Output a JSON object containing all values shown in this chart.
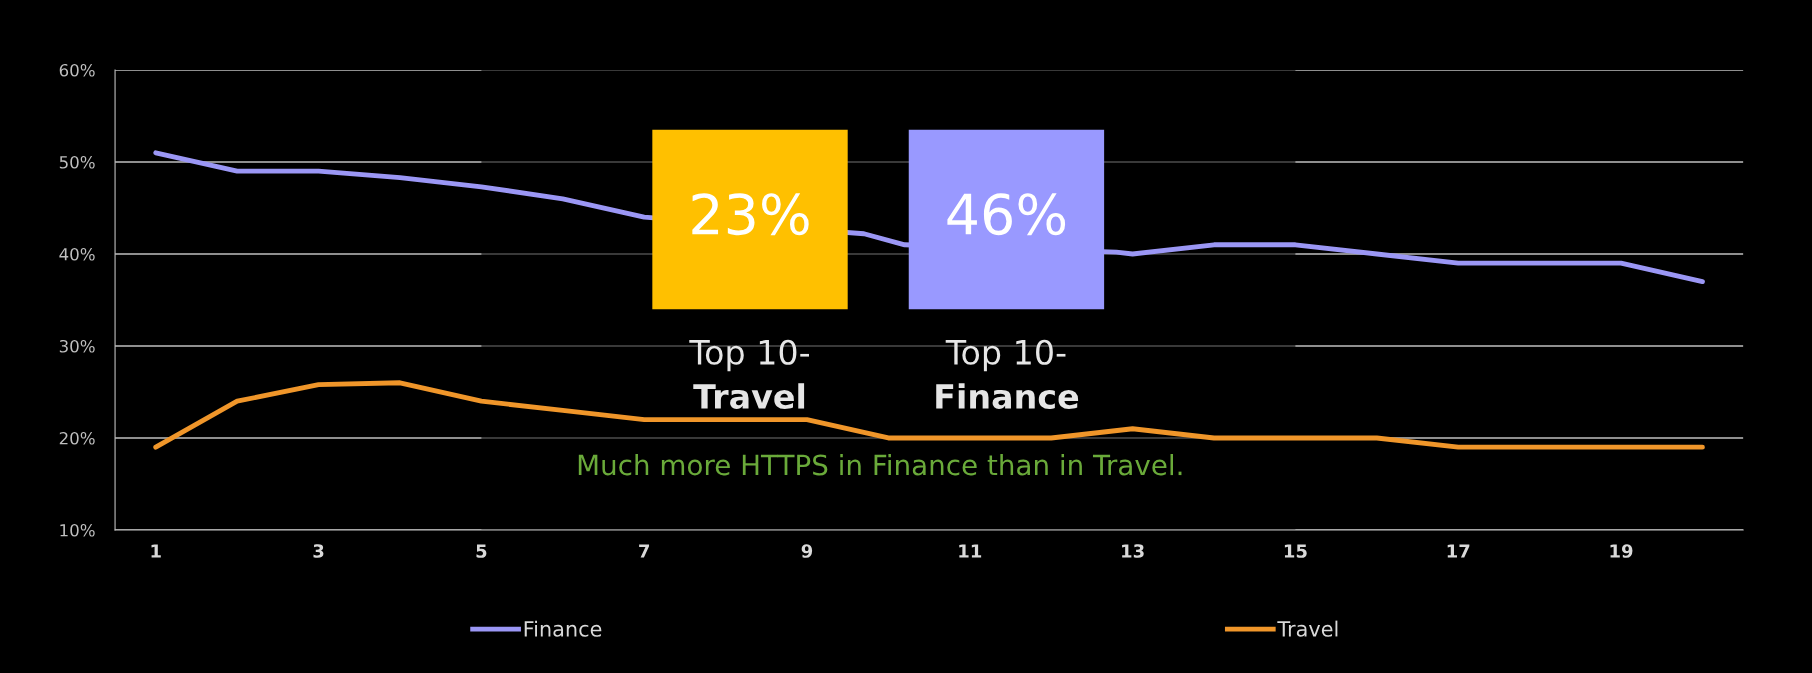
{
  "chart_data": {
    "type": "line",
    "x": [
      1,
      2,
      3,
      4,
      5,
      6,
      7,
      8,
      9,
      10,
      11,
      12,
      13,
      14,
      15,
      16,
      17,
      18,
      19,
      20
    ],
    "series": [
      {
        "name": "Finance",
        "color": "#9b97f5",
        "x": [
          1,
          2,
          3,
          4,
          5,
          6,
          7,
          9.7,
          10.2,
          12.8,
          13,
          14,
          15,
          16,
          17,
          18,
          19,
          20
        ],
        "values": [
          51,
          49,
          49,
          48.3,
          47.3,
          46,
          44,
          42.2,
          41,
          40.2,
          40,
          41,
          41,
          40,
          39,
          39,
          39,
          37
        ]
      },
      {
        "name": "Travel",
        "color": "#f0962a",
        "values": [
          19,
          24,
          25.8,
          26,
          24,
          23,
          22,
          22,
          22,
          20,
          20,
          20,
          21,
          20,
          20,
          20,
          19,
          19,
          19,
          19
        ]
      }
    ],
    "xlim": [
      0.5,
      20.5
    ],
    "xticks": [
      1,
      3,
      5,
      7,
      9,
      11,
      13,
      15,
      17,
      19
    ],
    "ylim": [
      10,
      60
    ],
    "yticks": [
      {
        "value": 10,
        "label": "10%"
      },
      {
        "value": 20,
        "label": "20%"
      },
      {
        "value": 30,
        "label": "30%"
      },
      {
        "value": 40,
        "label": "40%"
      },
      {
        "value": 50,
        "label": "50%"
      },
      {
        "value": 60,
        "label": "60%"
      }
    ],
    "grid": "y",
    "legend": "bottom",
    "marker": "none",
    "line_style": "solid",
    "bands": [
      {
        "axis": "x",
        "from": 5,
        "to": 15,
        "color": "#000000"
      }
    ],
    "annotations": [
      "23%",
      "Top 10-",
      "Travel",
      "46%",
      "Top 10-",
      "Finance",
      "Much more HTTPS in Finance than in Travel."
    ]
  }
}
